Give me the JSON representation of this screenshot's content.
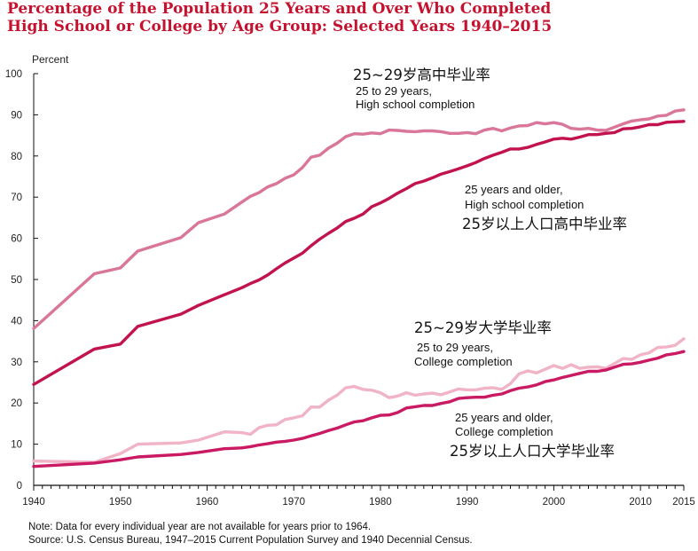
{
  "title": {
    "line1": "Percentage of the Population 25 Years and Over Who Completed",
    "line2": "High School or College by Age Group: Selected Years 1940–2015"
  },
  "notes": {
    "note": "Note: Data for every individual year are not available for years prior to 1964.",
    "source": "Source: U.S. Census Bureau, 1947–2015 Current Population Survey and 1940 Decennial Census."
  },
  "colors": {
    "title": "#c4122f",
    "hs_25_29": "#d9769a",
    "hs_25_older": "#c2134f",
    "college_25_29": "#f1b3c6",
    "college_25_older": "#c91a63",
    "axis": "#111111"
  },
  "chart_data": {
    "type": "line",
    "ylabel": "Percent",
    "xlim": [
      1940,
      2015
    ],
    "ylim": [
      0,
      100
    ],
    "x_ticks": [
      1940,
      1950,
      1960,
      1970,
      1980,
      1990,
      2000,
      2010,
      2015
    ],
    "y_ticks": [
      0,
      10,
      20,
      30,
      40,
      50,
      60,
      70,
      80,
      90,
      100
    ],
    "series": [
      {
        "key": "hs_25_29",
        "x": [
          1940,
          1947,
          1950,
          1952,
          1957,
          1959,
          1962,
          1964,
          1965,
          1966,
          1967,
          1968,
          1969,
          1970,
          1971,
          1972,
          1973,
          1974,
          1975,
          1976,
          1977,
          1978,
          1979,
          1980,
          1981,
          1982,
          1983,
          1984,
          1985,
          1986,
          1987,
          1988,
          1989,
          1990,
          1991,
          1992,
          1993,
          1994,
          1995,
          1996,
          1997,
          1998,
          1999,
          2000,
          2001,
          2002,
          2003,
          2004,
          2005,
          2006,
          2007,
          2008,
          2009,
          2010,
          2011,
          2012,
          2013,
          2014,
          2015
        ],
        "y": [
          38.1,
          51.4,
          52.8,
          56.9,
          60.2,
          63.8,
          65.9,
          68.8,
          70.2,
          71.1,
          72.5,
          73.3,
          74.6,
          75.4,
          77.2,
          79.7,
          80.2,
          81.9,
          83.1,
          84.7,
          85.4,
          85.3,
          85.6,
          85.4,
          86.3,
          86.2,
          86.0,
          85.9,
          86.1,
          86.1,
          85.9,
          85.5,
          85.5,
          85.7,
          85.4,
          86.3,
          86.7,
          86.1,
          86.8,
          87.3,
          87.4,
          88.1,
          87.8,
          88.1,
          87.7,
          86.7,
          86.5,
          86.7,
          86.3,
          86.2,
          87.0,
          87.8,
          88.5,
          88.8,
          89.0,
          89.7,
          89.9,
          90.9,
          91.2
        ]
      },
      {
        "key": "hs_25_older",
        "x": [
          1940,
          1947,
          1950,
          1952,
          1957,
          1959,
          1962,
          1964,
          1965,
          1966,
          1967,
          1968,
          1969,
          1970,
          1971,
          1972,
          1973,
          1974,
          1975,
          1976,
          1977,
          1978,
          1979,
          1980,
          1981,
          1982,
          1983,
          1984,
          1985,
          1986,
          1987,
          1988,
          1989,
          1990,
          1991,
          1992,
          1993,
          1994,
          1995,
          1996,
          1997,
          1998,
          1999,
          2000,
          2001,
          2002,
          2003,
          2004,
          2005,
          2006,
          2007,
          2008,
          2009,
          2010,
          2011,
          2012,
          2013,
          2014,
          2015
        ],
        "y": [
          24.5,
          33.1,
          34.3,
          38.6,
          41.6,
          43.7,
          46.3,
          48.0,
          49.0,
          49.9,
          51.1,
          52.6,
          54.0,
          55.2,
          56.4,
          58.2,
          59.8,
          61.2,
          62.5,
          64.1,
          64.9,
          65.9,
          67.7,
          68.6,
          69.7,
          71.0,
          72.1,
          73.3,
          73.9,
          74.7,
          75.6,
          76.2,
          76.9,
          77.6,
          78.4,
          79.4,
          80.2,
          80.9,
          81.7,
          81.7,
          82.1,
          82.8,
          83.4,
          84.1,
          84.3,
          84.1,
          84.6,
          85.2,
          85.2,
          85.5,
          85.7,
          86.6,
          86.7,
          87.1,
          87.6,
          87.6,
          88.2,
          88.3,
          88.4
        ]
      },
      {
        "key": "college_25_29",
        "x": [
          1940,
          1947,
          1950,
          1952,
          1957,
          1959,
          1962,
          1964,
          1965,
          1966,
          1967,
          1968,
          1969,
          1970,
          1971,
          1972,
          1973,
          1974,
          1975,
          1976,
          1977,
          1978,
          1979,
          1980,
          1981,
          1982,
          1983,
          1984,
          1985,
          1986,
          1987,
          1988,
          1989,
          1990,
          1991,
          1992,
          1993,
          1994,
          1995,
          1996,
          1997,
          1998,
          1999,
          2000,
          2001,
          2002,
          2003,
          2004,
          2005,
          2006,
          2007,
          2008,
          2009,
          2010,
          2011,
          2012,
          2013,
          2014,
          2015
        ],
        "y": [
          5.9,
          5.6,
          7.7,
          10.0,
          10.3,
          11.0,
          13.0,
          12.8,
          12.4,
          14.0,
          14.6,
          14.7,
          16.0,
          16.4,
          16.9,
          19.0,
          19.0,
          20.7,
          21.9,
          23.7,
          24.0,
          23.3,
          23.1,
          22.5,
          21.3,
          21.7,
          22.5,
          21.9,
          22.2,
          22.4,
          22.0,
          22.7,
          23.4,
          23.2,
          23.2,
          23.6,
          23.7,
          23.3,
          24.7,
          27.1,
          27.8,
          27.3,
          28.2,
          29.1,
          28.4,
          29.3,
          28.4,
          28.7,
          28.8,
          28.4,
          29.6,
          30.8,
          30.6,
          31.7,
          32.2,
          33.5,
          33.6,
          34.0,
          35.6
        ]
      },
      {
        "key": "college_25_older",
        "x": [
          1940,
          1947,
          1950,
          1952,
          1957,
          1959,
          1962,
          1964,
          1965,
          1966,
          1967,
          1968,
          1969,
          1970,
          1971,
          1972,
          1973,
          1974,
          1975,
          1976,
          1977,
          1978,
          1979,
          1980,
          1981,
          1982,
          1983,
          1984,
          1985,
          1986,
          1987,
          1988,
          1989,
          1990,
          1991,
          1992,
          1993,
          1994,
          1995,
          1996,
          1997,
          1998,
          1999,
          2000,
          2001,
          2002,
          2003,
          2004,
          2005,
          2006,
          2007,
          2008,
          2009,
          2010,
          2011,
          2012,
          2013,
          2014,
          2015
        ],
        "y": [
          4.6,
          5.4,
          6.2,
          6.9,
          7.5,
          8.0,
          8.9,
          9.1,
          9.4,
          9.8,
          10.1,
          10.5,
          10.7,
          11.0,
          11.4,
          12.0,
          12.6,
          13.3,
          13.9,
          14.7,
          15.4,
          15.7,
          16.4,
          17.0,
          17.1,
          17.7,
          18.8,
          19.1,
          19.4,
          19.4,
          19.9,
          20.3,
          21.1,
          21.3,
          21.4,
          21.4,
          21.9,
          22.2,
          23.0,
          23.6,
          23.9,
          24.4,
          25.2,
          25.6,
          26.2,
          26.7,
          27.2,
          27.7,
          27.7,
          28.0,
          28.7,
          29.4,
          29.5,
          29.9,
          30.4,
          30.9,
          31.7,
          32.0,
          32.5
        ]
      }
    ],
    "annotations": {
      "hs_25_29_en1": "25 to 29 years,",
      "hs_25_29_en2": "High school completion",
      "hs_25_29_cn": "25~29岁高中毕业率",
      "hs_older_en1": "25 years and older,",
      "hs_older_en2": "High school completion",
      "hs_older_cn": "25岁以上人口高中毕业率",
      "col_25_29_cn": "25~29岁大学毕业率",
      "col_25_29_en1": "25 to 29 years,",
      "col_25_29_en2": "College completion",
      "col_older_en1": "25 years and older,",
      "col_older_en2": "College completion",
      "col_older_cn": "25岁以上人口大学毕业率"
    }
  }
}
